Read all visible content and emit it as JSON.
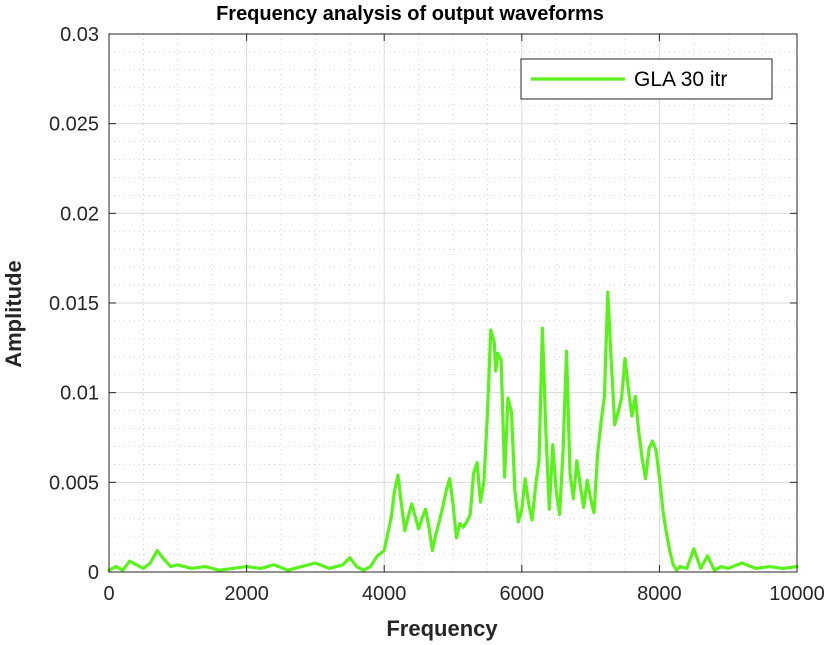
{
  "chart_data": {
    "type": "line",
    "title": "Frequency analysis of output waveforms",
    "xlabel": "Frequency",
    "ylabel": "Amplitude",
    "xlim": [
      0,
      10000
    ],
    "ylim": [
      0,
      0.03
    ],
    "x_ticks": [
      0,
      2000,
      4000,
      6000,
      8000,
      10000
    ],
    "x_tick_labels": [
      "0",
      "2000",
      "4000",
      "6000",
      "8000",
      "10000"
    ],
    "y_ticks": [
      0,
      0.005,
      0.01,
      0.015,
      0.02,
      0.025,
      0.03
    ],
    "y_tick_labels": [
      "0",
      "0.005",
      "0.01",
      "0.015",
      "0.02",
      "0.025",
      "0.03"
    ],
    "grid": true,
    "minor_grid": true,
    "legend_position": "top-right",
    "series": [
      {
        "name": "GLA 30 itr",
        "color": "#5af21b",
        "x": [
          0,
          100,
          200,
          300,
          400,
          500,
          600,
          700,
          800,
          900,
          1000,
          1200,
          1400,
          1600,
          1800,
          2000,
          2200,
          2400,
          2600,
          2800,
          3000,
          3200,
          3400,
          3500,
          3600,
          3700,
          3800,
          3900,
          4000,
          4100,
          4150,
          4200,
          4250,
          4300,
          4350,
          4400,
          4450,
          4500,
          4550,
          4600,
          4650,
          4700,
          4750,
          4800,
          4850,
          4900,
          4950,
          5000,
          5050,
          5100,
          5150,
          5200,
          5250,
          5300,
          5350,
          5400,
          5450,
          5500,
          5550,
          5600,
          5620,
          5650,
          5700,
          5750,
          5800,
          5850,
          5900,
          5950,
          6000,
          6050,
          6100,
          6150,
          6200,
          6250,
          6300,
          6350,
          6400,
          6450,
          6500,
          6550,
          6600,
          6650,
          6700,
          6750,
          6800,
          6850,
          6900,
          6950,
          7000,
          7050,
          7100,
          7150,
          7200,
          7250,
          7300,
          7350,
          7400,
          7450,
          7500,
          7550,
          7600,
          7650,
          7700,
          7750,
          7800,
          7850,
          7900,
          7950,
          8000,
          8050,
          8100,
          8150,
          8200,
          8250,
          8300,
          8400,
          8500,
          8600,
          8700,
          8800,
          8900,
          9000,
          9200,
          9400,
          9600,
          9800,
          10000
        ],
        "values": [
          0.0001,
          0.0003,
          0.0001,
          0.0006,
          0.0004,
          0.0002,
          0.0005,
          0.0012,
          0.0007,
          0.0003,
          0.0004,
          0.0002,
          0.0003,
          0.0001,
          0.0002,
          0.0003,
          0.0002,
          0.0004,
          0.0001,
          0.0003,
          0.0005,
          0.0002,
          0.0004,
          0.0008,
          0.0003,
          0.0001,
          0.0003,
          0.0009,
          0.0012,
          0.003,
          0.0045,
          0.0054,
          0.0038,
          0.0023,
          0.0031,
          0.0038,
          0.0031,
          0.0024,
          0.003,
          0.0035,
          0.0025,
          0.0012,
          0.0021,
          0.0028,
          0.0036,
          0.0045,
          0.0052,
          0.0038,
          0.0019,
          0.0027,
          0.0025,
          0.0028,
          0.0032,
          0.0055,
          0.0061,
          0.0039,
          0.0051,
          0.0088,
          0.0135,
          0.0128,
          0.0112,
          0.0122,
          0.0118,
          0.0053,
          0.0097,
          0.0089,
          0.0045,
          0.0028,
          0.0035,
          0.0052,
          0.0038,
          0.0029,
          0.0048,
          0.0062,
          0.0136,
          0.0078,
          0.0035,
          0.0071,
          0.0045,
          0.0032,
          0.0068,
          0.0123,
          0.0055,
          0.0041,
          0.0062,
          0.0048,
          0.0036,
          0.0051,
          0.0041,
          0.0033,
          0.0065,
          0.0083,
          0.0098,
          0.0156,
          0.0118,
          0.0082,
          0.0089,
          0.0097,
          0.0119,
          0.0102,
          0.0087,
          0.0098,
          0.0078,
          0.0063,
          0.0052,
          0.0069,
          0.0073,
          0.0068,
          0.0053,
          0.0035,
          0.0022,
          0.0012,
          0.0004,
          0.0001,
          0.0003,
          0.0002,
          0.0013,
          0.0002,
          0.0009,
          0.0001,
          0.0003,
          0.0002,
          0.0005,
          0.0002,
          0.0003,
          0.0002,
          0.0003
        ]
      }
    ]
  }
}
